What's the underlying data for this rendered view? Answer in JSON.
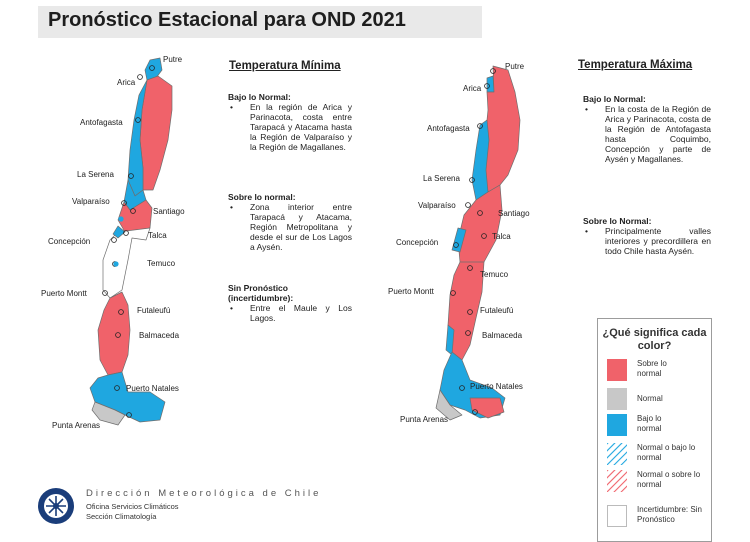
{
  "title": "Pronóstico Estacional para OND 2021",
  "colors": {
    "above": "#f0626a",
    "normal": "#c8c8c8",
    "below": "#1fa7e0",
    "uncertain": "#ffffff",
    "outline": "#7a7a7a"
  },
  "map_left": {
    "cities": [
      "Putre",
      "Arica",
      "Antofagasta",
      "La Serena",
      "Valparaíso",
      "Santiago",
      "Concepción",
      "Talca",
      "Temuco",
      "Puerto Montt",
      "Futaleufú",
      "Balmaceda",
      "Puerto Natales",
      "Punta Arenas"
    ]
  },
  "map_right": {
    "cities": [
      "Putre",
      "Arica",
      "Antofagasta",
      "La Serena",
      "Valparaíso",
      "Santiago",
      "Talca",
      "Concepción",
      "Temuco",
      "Puerto Montt",
      "Futaleufú",
      "Balmaceda",
      "Puerto Natales",
      "Punta Arenas"
    ]
  },
  "min_panel": {
    "heading": "Temperatura Mínima",
    "below_heading": "Bajo lo Normal:",
    "below_text": "En la región de Arica y Parinacota, costa entre Tarapacá y Atacama hasta la Región de Valparaíso y la Región de Magallanes.",
    "above_heading": "Sobre lo normal:",
    "above_text": "Zona interior entre Tarapacá y Atacama, Región Metropolitana y desde el sur de Los Lagos a Aysén.",
    "none_heading": "Sin Pronóstico (incertidumbre):",
    "none_text": "Entre el Maule y Los Lagos."
  },
  "max_panel": {
    "heading": "Temperatura Máxima",
    "below_heading": "Bajo lo Normal:",
    "below_text": "En la costa de la Región de Arica y Parinacota, costa de la Región de Antofagasta hasta Coquimbo, Concepción y parte de Aysén y Magallanes.",
    "above_heading": "Sobre lo Normal:",
    "above_text": "Principalmente valles interiores y precordillera en todo Chile hasta Aysén."
  },
  "legend": {
    "title": "¿Qué significa cada color?",
    "items": [
      {
        "label": "Sobre lo normal",
        "type": "above"
      },
      {
        "label": "Normal",
        "type": "normal"
      },
      {
        "label": "Bajo lo normal",
        "type": "below"
      },
      {
        "label": "Normal o bajo lo normal",
        "type": "normal-below"
      },
      {
        "label": "Normal o sobre lo normal",
        "type": "normal-above"
      },
      {
        "label": "Incertidumbre: Sin Pronóstico",
        "type": "uncertain"
      }
    ]
  },
  "institution": {
    "name": "Dirección Meteorológica de Chile",
    "line1": "Oficina Servicios Climáticos",
    "line2": "Sección Climatología"
  }
}
